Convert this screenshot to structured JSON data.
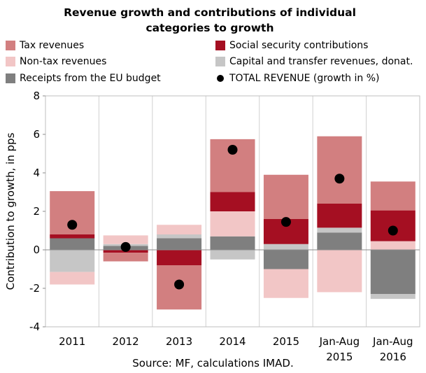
{
  "chart_data": {
    "type": "bar",
    "title": "Revenue growth and contributions of individual categories to growth",
    "title_lines": [
      "Revenue growth and contributions of individual",
      "categories to growth"
    ],
    "ylabel": "Contribution to growth, in pps",
    "ylim": [
      -4,
      8
    ],
    "yticks": [
      -4,
      -2,
      0,
      2,
      4,
      6,
      8
    ],
    "grid": "vertical category separators",
    "categories": [
      [
        "2011"
      ],
      [
        "2012"
      ],
      [
        "2013"
      ],
      [
        "2014"
      ],
      [
        "2015"
      ],
      [
        "Jan-Aug",
        "2015"
      ],
      [
        "Jan-Aug",
        "2016"
      ]
    ],
    "series": [
      {
        "name": "Receipts from the EU budget",
        "color": "#7f7f7f",
        "values": [
          0.6,
          0.2,
          0.6,
          0.7,
          -1.0,
          0.9,
          -2.3
        ]
      },
      {
        "name": "Capital and transfer revenues, donat.",
        "color": "#c6c6c6",
        "values": [
          -1.15,
          0.1,
          0.2,
          -0.5,
          0.3,
          0.25,
          -0.25
        ]
      },
      {
        "name": "Non-tax revenues",
        "color": "#f2c6c6",
        "values": [
          -0.65,
          0.45,
          0.5,
          1.3,
          -1.5,
          -2.2,
          0.45
        ]
      },
      {
        "name": "Social security contributions",
        "color": "#a50f22",
        "values": [
          0.2,
          -0.15,
          -0.8,
          1.0,
          1.3,
          1.25,
          1.6
        ]
      },
      {
        "name": "Tax revenues",
        "color": "#d27f80",
        "values": [
          2.25,
          -0.45,
          -2.3,
          2.75,
          2.3,
          3.5,
          1.5
        ]
      }
    ],
    "total": {
      "name": "TOTAL REVENUE (growth in %)",
      "color": "#000000",
      "values": [
        1.3,
        0.15,
        -1.8,
        5.2,
        1.45,
        3.7,
        1.0
      ]
    },
    "legend_order": [
      "Tax revenues",
      "Social security contributions",
      "Non-tax revenues",
      "Capital and transfer revenues, donat.",
      "Receipts from the EU budget",
      "TOTAL REVENUE (growth in %)"
    ],
    "legend_placement": "top",
    "source": "Source: MF, calculations IMAD."
  }
}
